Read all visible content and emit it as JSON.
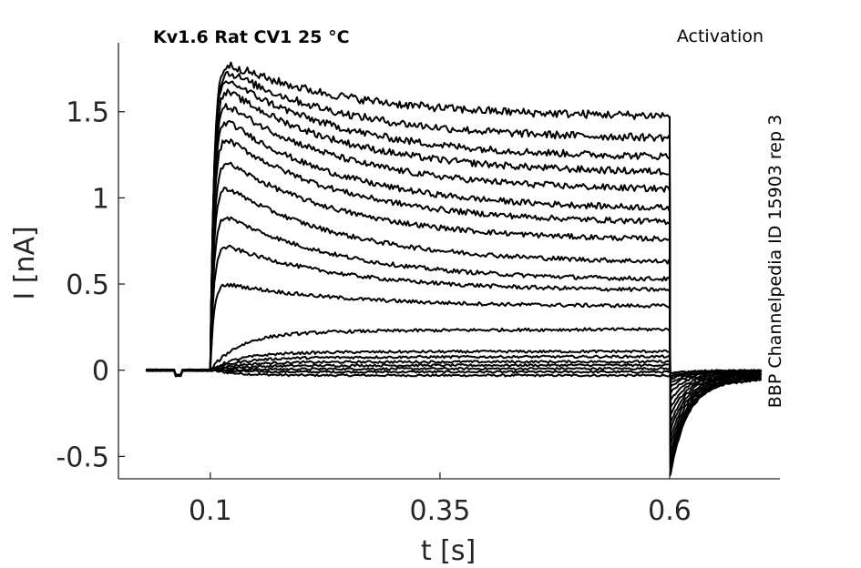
{
  "chart_data": {
    "type": "line",
    "title": "Kv1.6  Rat  CV1  25 °C",
    "protocol": "Activation",
    "side_note": "BBP Channelpedia ID 15903 rep 3",
    "xlabel": "t [s]",
    "ylabel": "I [nA]",
    "xlim": [
      0.0,
      0.72
    ],
    "ylim": [
      -0.63,
      1.9
    ],
    "xticks": [
      0.1,
      0.35,
      0.6
    ],
    "xtick_labels": [
      "0.1",
      "0.35",
      "0.6"
    ],
    "yticks": [
      -0.5,
      0,
      0.5,
      1,
      1.5
    ],
    "ytick_labels": [
      "-0.5",
      "0",
      "0.5",
      "1",
      "1.5"
    ],
    "grid": false,
    "legend": "none",
    "line_color": "#000000",
    "pulse_start_s": 0.1,
    "pulse_end_s": 0.6,
    "series": [
      {
        "peak": -0.03,
        "steady": -0.03,
        "tail_min": -0.02
      },
      {
        "peak": -0.01,
        "steady": -0.01,
        "tail_min": -0.02
      },
      {
        "peak": 0.0,
        "steady": 0.01,
        "tail_min": -0.03
      },
      {
        "peak": 0.02,
        "steady": 0.03,
        "tail_min": -0.04
      },
      {
        "peak": 0.04,
        "steady": 0.05,
        "tail_min": -0.05
      },
      {
        "peak": 0.06,
        "steady": 0.08,
        "tail_min": -0.07
      },
      {
        "peak": 0.09,
        "steady": 0.11,
        "tail_min": -0.09
      },
      {
        "peak": 0.18,
        "steady": 0.24,
        "tail_min": -0.12
      },
      {
        "peak": 0.52,
        "steady": 0.37,
        "tail_min": -0.16
      },
      {
        "peak": 0.76,
        "steady": 0.46,
        "tail_min": -0.2
      },
      {
        "peak": 0.95,
        "steady": 0.52,
        "tail_min": -0.24
      },
      {
        "peak": 1.13,
        "steady": 0.62,
        "tail_min": -0.28
      },
      {
        "peak": 1.28,
        "steady": 0.75,
        "tail_min": -0.32
      },
      {
        "peak": 1.42,
        "steady": 0.85,
        "tail_min": -0.36
      },
      {
        "peak": 1.53,
        "steady": 0.93,
        "tail_min": -0.4
      },
      {
        "peak": 1.62,
        "steady": 1.04,
        "tail_min": -0.44
      },
      {
        "peak": 1.7,
        "steady": 1.14,
        "tail_min": -0.48
      },
      {
        "peak": 1.76,
        "steady": 1.23,
        "tail_min": -0.51
      },
      {
        "peak": 1.8,
        "steady": 1.34,
        "tail_min": -0.53
      },
      {
        "peak": 1.83,
        "steady": 1.47,
        "tail_min": -0.55
      }
    ]
  }
}
